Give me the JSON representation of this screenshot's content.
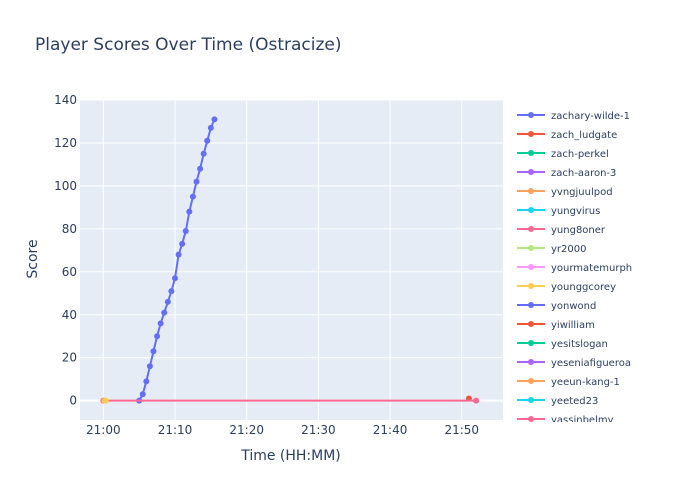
{
  "chart_data": {
    "type": "line",
    "title": "Player Scores Over Time (Ostracize)",
    "xlabel": "Time (HH:MM)",
    "ylabel": "Score",
    "x_ticks": [
      "21:00",
      "21:10",
      "21:20",
      "21:30",
      "21:40",
      "21:50"
    ],
    "y_ticks": [
      0,
      20,
      40,
      60,
      80,
      100,
      120,
      140
    ],
    "xlim": [
      "20:56:45",
      "21:55:45"
    ],
    "ylim": [
      -9,
      140
    ],
    "grid": true,
    "legend_position": "right",
    "series": [
      {
        "name": "zachary-wilde-1",
        "color": "#636efa",
        "x": [
          "21:05:00",
          "21:05:30",
          "21:06:00",
          "21:06:30",
          "21:07:00",
          "21:07:30",
          "21:08:00",
          "21:08:30",
          "21:09:00",
          "21:09:30",
          "21:10:00",
          "21:10:30",
          "21:11:00",
          "21:11:30",
          "21:12:00",
          "21:12:30",
          "21:13:00",
          "21:13:30",
          "21:14:00",
          "21:14:30",
          "21:15:00",
          "21:15:30"
        ],
        "y": [
          0,
          3,
          9,
          16,
          23,
          30,
          36,
          41,
          46,
          51,
          57,
          68,
          73,
          79,
          88,
          95,
          102,
          108,
          115,
          121,
          127,
          131
        ]
      },
      {
        "name": "zach_ludgate",
        "color": "#ef553b",
        "x": [
          "21:51:00"
        ],
        "y": [
          1
        ]
      },
      {
        "name": "zach-perkel",
        "color": "#00cc96",
        "x": [],
        "y": []
      },
      {
        "name": "zach-aaron-3",
        "color": "#ab63fa",
        "x": [],
        "y": []
      },
      {
        "name": "yvngjuulpod",
        "color": "#ffa15a",
        "x": [],
        "y": []
      },
      {
        "name": "yungvirus",
        "color": "#19d3f3",
        "x": [],
        "y": []
      },
      {
        "name": "yung8oner",
        "color": "#ff6692",
        "x": [
          "21:00:00",
          "21:52:00"
        ],
        "y": [
          0,
          0
        ]
      },
      {
        "name": "yr2000",
        "color": "#b6e880",
        "x": [],
        "y": []
      },
      {
        "name": "yourmatemurph",
        "color": "#ff97ff",
        "x": [],
        "y": []
      },
      {
        "name": "younggcorey",
        "color": "#fecb52",
        "x": [
          "21:00:10",
          "21:00:20"
        ],
        "y": [
          0,
          0
        ]
      },
      {
        "name": "yonwond",
        "color": "#636efa",
        "x": [],
        "y": []
      },
      {
        "name": "yiwilliam",
        "color": "#ef553b",
        "x": [],
        "y": []
      },
      {
        "name": "yesitslogan",
        "color": "#00cc96",
        "x": [],
        "y": []
      },
      {
        "name": "yeseniafigueroa",
        "color": "#ab63fa",
        "x": [],
        "y": []
      },
      {
        "name": "yeeun-kang-1",
        "color": "#ffa15a",
        "x": [],
        "y": []
      },
      {
        "name": "yeeted23",
        "color": "#19d3f3",
        "x": [],
        "y": []
      },
      {
        "name": "yassinbelmy",
        "color": "#ff6692",
        "x": [],
        "y": []
      }
    ]
  }
}
